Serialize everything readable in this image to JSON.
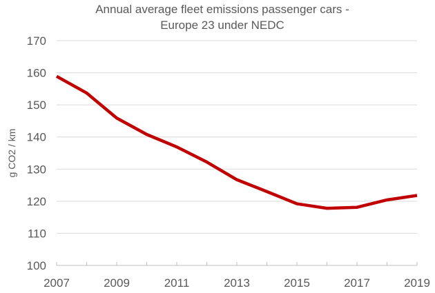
{
  "chart_data": {
    "type": "line",
    "title": "Annual average fleet emissions passenger cars -",
    "subtitle": "Europe 23 under NEDC",
    "xlabel": "",
    "ylabel": "g CO2 / km",
    "ylim": [
      100,
      170
    ],
    "xlim": [
      2007,
      2019
    ],
    "grid": true,
    "x_ticks": [
      "2007",
      "2009",
      "2011",
      "2013",
      "2015",
      "2017",
      "2019"
    ],
    "y_ticks": [
      "100",
      "110",
      "120",
      "130",
      "140",
      "150",
      "160",
      "170"
    ],
    "colors": {
      "series": "#C00000",
      "grid": "#D9D9D9",
      "axis": "#BFBFBF",
      "text": "#595959"
    },
    "series": [
      {
        "values": [
          {
            "x": 2007,
            "y": 158.9
          },
          {
            "x": 2008,
            "y": 153.7
          },
          {
            "x": 2009,
            "y": 145.9
          },
          {
            "x": 2010,
            "y": 140.8
          },
          {
            "x": 2011,
            "y": 136.9
          },
          {
            "x": 2012,
            "y": 132.2
          },
          {
            "x": 2013,
            "y": 126.7
          },
          {
            "x": 2014,
            "y": 123.0
          },
          {
            "x": 2015,
            "y": 119.2
          },
          {
            "x": 2016,
            "y": 117.8
          },
          {
            "x": 2017,
            "y": 118.1
          },
          {
            "x": 2018,
            "y": 120.4
          },
          {
            "x": 2019,
            "y": 121.8
          }
        ]
      }
    ]
  }
}
